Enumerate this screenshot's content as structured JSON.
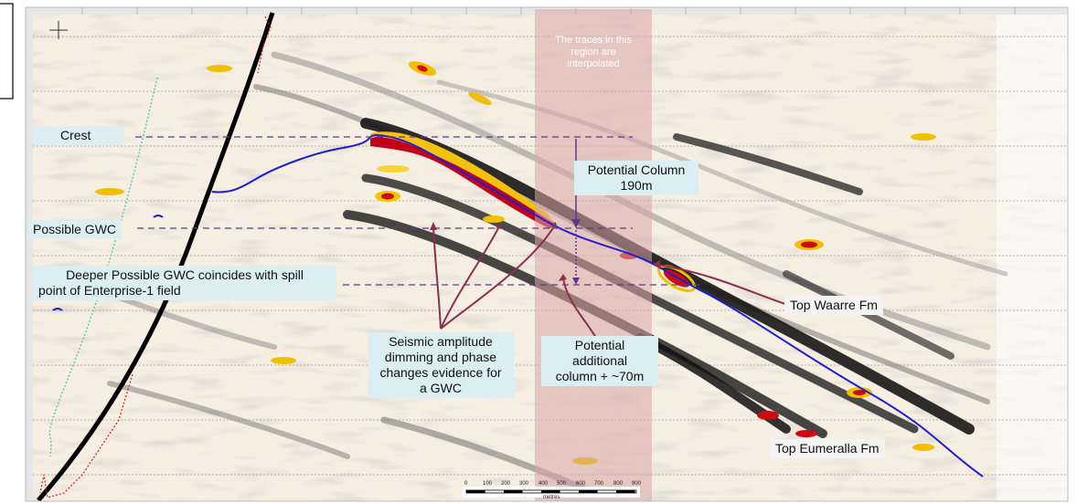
{
  "labels": {
    "crest": "Crest",
    "possible_gwc": "Possible GWC",
    "deeper_gwc_line1": "Deeper Possible GWC coincides with spill",
    "deeper_gwc_line2": "point of Enterprise-1 field",
    "potential_column_line1": "Potential Column",
    "potential_column_line2": "190m",
    "seismic_line1": "Seismic amplitude",
    "seismic_line2": "dimming and phase",
    "seismic_line3": "changes evidence for",
    "seismic_line4": "a GWC",
    "additional_line1": "Potential",
    "additional_line2": "additional",
    "additional_line3": "column + ~70m",
    "top_waarre": "Top Waarre Fm",
    "top_eumeralla": "Top Eumeralla Fm",
    "interp_line1": "The traces in this",
    "interp_line2": "region are",
    "interp_line3": "interpolated",
    "scale_unit": "metres"
  },
  "colors": {
    "label_bg": "#daeef3",
    "horizon_blue": "#1f1fd0",
    "fault_black": "#000000",
    "dashed_purple": "#5b3a86",
    "arrow_maroon": "#8a2f4e",
    "interp_band": "#d8a5a5"
  },
  "scale_bar_ticks": [
    "0",
    "100",
    "200",
    "300",
    "400",
    "500",
    "600",
    "700",
    "800",
    "900"
  ]
}
